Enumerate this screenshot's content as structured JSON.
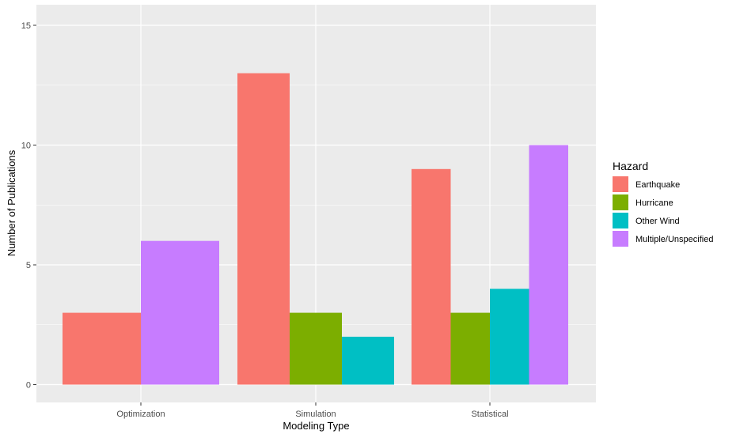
{
  "chart_data": {
    "type": "bar",
    "title": "",
    "xlabel": "Modeling Type",
    "ylabel": "Number of Publications",
    "ylim": [
      0,
      15.5
    ],
    "yticks": [
      0,
      5,
      10,
      15
    ],
    "grid": true,
    "legend_position": "right",
    "legend_title": "Hazard",
    "categories": [
      {
        "label": "Optimization",
        "bars": [
          {
            "series": "Earthquake",
            "value": 3
          },
          {
            "series": "Multiple/Unspecified",
            "value": 6
          }
        ]
      },
      {
        "label": "Simulation",
        "bars": [
          {
            "series": "Earthquake",
            "value": 13
          },
          {
            "series": "Hurricane",
            "value": 3
          },
          {
            "series": "Other Wind",
            "value": 2
          }
        ]
      },
      {
        "label": "Statistical",
        "bars": [
          {
            "series": "Earthquake",
            "value": 9
          },
          {
            "series": "Hurricane",
            "value": 3
          },
          {
            "series": "Other Wind",
            "value": 4
          },
          {
            "series": "Multiple/Unspecified",
            "value": 10
          }
        ]
      }
    ],
    "series": [
      {
        "name": "Earthquake",
        "color": "#F8766D"
      },
      {
        "name": "Hurricane",
        "color": "#7CAE00"
      },
      {
        "name": "Other Wind",
        "color": "#00BFC4"
      },
      {
        "name": "Multiple/Unspecified",
        "color": "#C77CFF"
      }
    ]
  }
}
